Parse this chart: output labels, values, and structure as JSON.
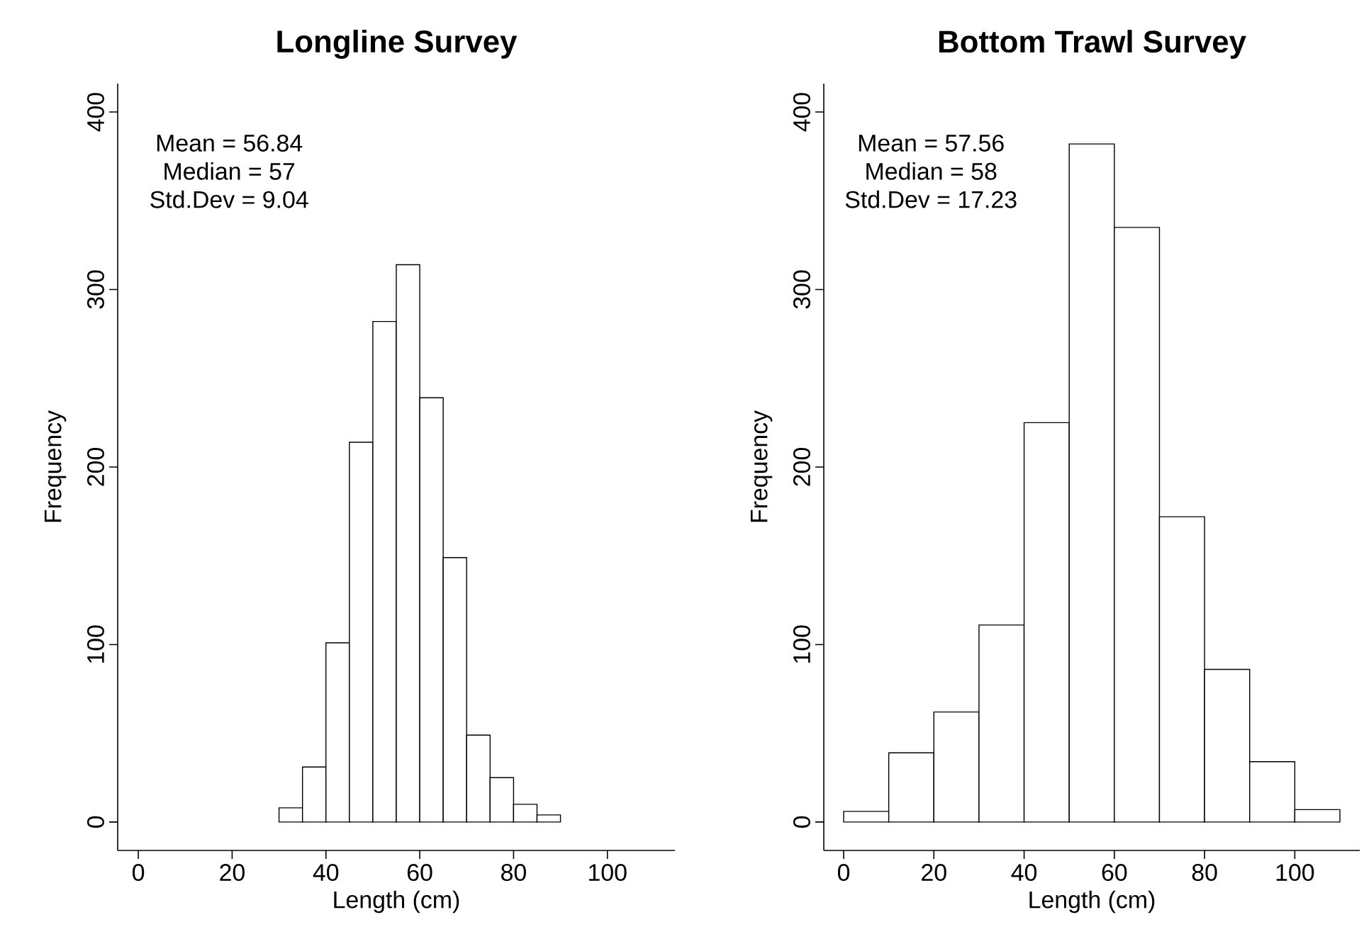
{
  "chart_data": [
    {
      "type": "histogram",
      "title": "Longline Survey",
      "xlabel": "Length (cm)",
      "ylabel": "Frequency",
      "annotations": [
        "Mean = 56.84",
        "Median = 57",
        "Std.Dev = 9.04"
      ],
      "bins": [
        30,
        35,
        40,
        45,
        50,
        55,
        60,
        65,
        70,
        75,
        80,
        85,
        90
      ],
      "values": [
        8,
        31,
        101,
        214,
        282,
        314,
        239,
        149,
        49,
        25,
        10,
        4
      ],
      "color": "#ffffff",
      "xlim": [
        -4.4,
        114.4
      ],
      "ylim": [
        -16,
        416
      ],
      "xticks": [
        0,
        20,
        40,
        60,
        80,
        100
      ],
      "yticks": [
        0,
        100,
        200,
        300,
        400
      ]
    },
    {
      "type": "histogram",
      "title": "Bottom Trawl Survey",
      "xlabel": "Length (cm)",
      "ylabel": "Frequency",
      "annotations": [
        "Mean = 57.56",
        "Median = 58",
        "Std.Dev = 17.23"
      ],
      "bins": [
        0,
        10,
        20,
        30,
        40,
        50,
        60,
        70,
        80,
        90,
        100,
        110
      ],
      "values": [
        6,
        39,
        62,
        111,
        225,
        382,
        335,
        172,
        86,
        34,
        7
      ],
      "color": "#ffffff",
      "xlim": [
        -4.4,
        114.4
      ],
      "ylim": [
        -16,
        416
      ],
      "xticks": [
        0,
        20,
        40,
        60,
        80,
        100
      ],
      "yticks": [
        0,
        100,
        200,
        300,
        400
      ]
    }
  ]
}
